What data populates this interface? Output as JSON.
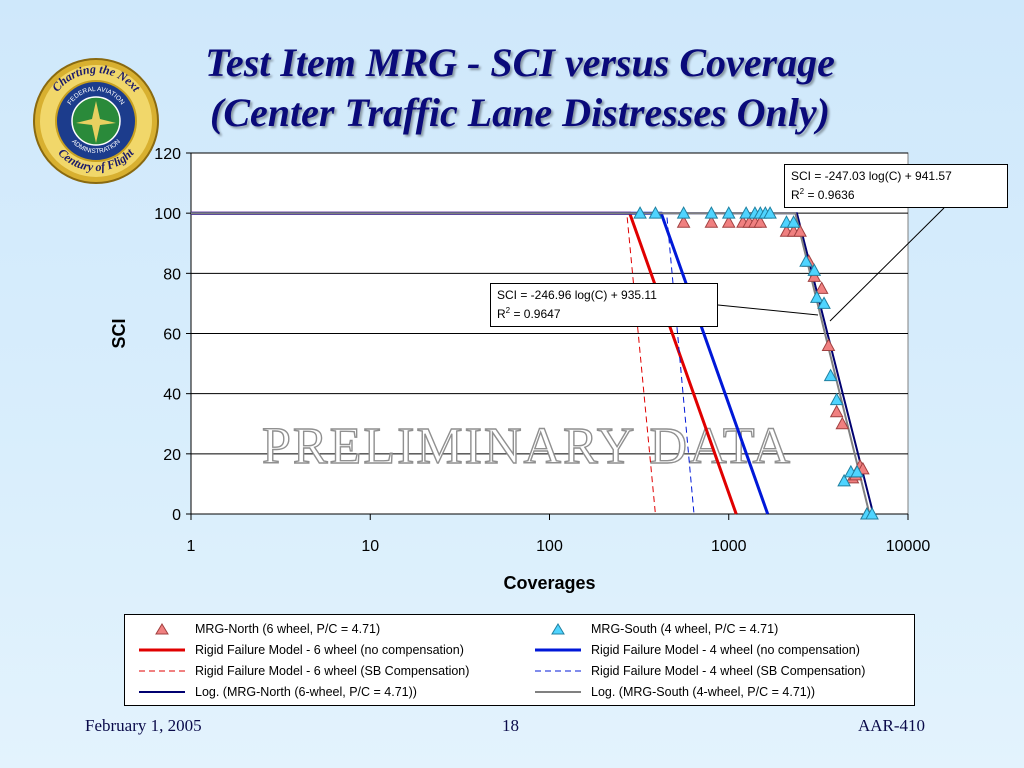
{
  "slide": {
    "title_line1": "Test Item MRG - SCI versus Coverage",
    "title_line2": "(Center Traffic Lane Distresses Only)",
    "footer_left": "February 1, 2005",
    "footer_center": "18",
    "footer_right": "AAR-410",
    "logo_text_top": "Charting the Next",
    "logo_text_bottom": "Century of Flight",
    "logo_ring_top": "FEDERAL AVIATION",
    "logo_ring_bottom": "ADMINISTRATION"
  },
  "chart_data": {
    "type": "scatter",
    "xlabel": "Coverages",
    "ylabel": "SCI",
    "xscale": "log",
    "xlim": [
      1,
      10000
    ],
    "ylim": [
      0,
      120
    ],
    "xticks": [
      "1",
      "10",
      "100",
      "1000",
      "10000"
    ],
    "yticks": [
      "0",
      "20",
      "40",
      "60",
      "80",
      "100",
      "120"
    ],
    "grid": "horizontal",
    "watermark": "PRELIMINARY DATA",
    "annotations": [
      {
        "equation": "SCI = -247.03 log(C) + 941.57",
        "r2_label": "R",
        "r2_value": " = 0.9636"
      },
      {
        "equation": "SCI = -246.96 log(C) + 935.11",
        "r2_label": "R",
        "r2_value": " = 0.9647"
      }
    ],
    "series": [
      {
        "name": "MRG-North  (6 wheel, P/C = 4.71)",
        "kind": "marker",
        "marker": "triangle",
        "color": "#f08080",
        "points": [
          [
            560,
            97
          ],
          [
            800,
            97
          ],
          [
            1000,
            97
          ],
          [
            1200,
            97
          ],
          [
            1300,
            97
          ],
          [
            1400,
            97
          ],
          [
            1500,
            97
          ],
          [
            2100,
            94
          ],
          [
            2300,
            94
          ],
          [
            2500,
            94
          ],
          [
            2800,
            84
          ],
          [
            3000,
            79
          ],
          [
            3300,
            75
          ],
          [
            3600,
            56
          ],
          [
            4000,
            34
          ],
          [
            4300,
            30
          ],
          [
            4900,
            12
          ],
          [
            5100,
            13
          ],
          [
            5400,
            16
          ],
          [
            5600,
            15
          ],
          [
            5900,
            0
          ]
        ]
      },
      {
        "name": "MRG-South (4 wheel, P/C = 4.71)",
        "kind": "marker",
        "marker": "triangle",
        "color": "#4fd4ff",
        "points": [
          [
            320,
            100
          ],
          [
            390,
            100
          ],
          [
            560,
            100
          ],
          [
            800,
            100
          ],
          [
            1000,
            100
          ],
          [
            1250,
            100
          ],
          [
            1400,
            100
          ],
          [
            1500,
            100
          ],
          [
            1600,
            100
          ],
          [
            1700,
            100
          ],
          [
            2100,
            97
          ],
          [
            2300,
            97
          ],
          [
            2700,
            84
          ],
          [
            3000,
            81
          ],
          [
            3100,
            72
          ],
          [
            3400,
            70
          ],
          [
            3700,
            46
          ],
          [
            4000,
            38
          ],
          [
            4400,
            11
          ],
          [
            4800,
            14
          ],
          [
            5200,
            14
          ],
          [
            5900,
            0
          ],
          [
            6300,
            0
          ]
        ]
      },
      {
        "name": "Rigid Failure Model - 6 wheel (no compensation)",
        "kind": "line",
        "color": "#e00000",
        "dash": "solid",
        "width": 3,
        "points": [
          [
            1,
            100
          ],
          [
            280,
            100
          ],
          [
            1100,
            0
          ]
        ]
      },
      {
        "name": "Rigid Failure Model - 4 wheel (no compensation)",
        "kind": "line",
        "color": "#0018d8",
        "dash": "solid",
        "width": 3,
        "points": [
          [
            1,
            100
          ],
          [
            420,
            100
          ],
          [
            1650,
            0
          ]
        ]
      },
      {
        "name": "Rigid Failure Model - 6 wheel (SB Compensation)",
        "kind": "line",
        "color": "#e00000",
        "dash": "dashed",
        "width": 1,
        "points": [
          [
            1,
            100
          ],
          [
            270,
            100
          ],
          [
            390,
            0
          ]
        ]
      },
      {
        "name": "Rigid Failure Model - 4 wheel (SB Compensation)",
        "kind": "line",
        "color": "#0018d8",
        "dash": "dashed",
        "width": 1,
        "points": [
          [
            1,
            100
          ],
          [
            450,
            100
          ],
          [
            640,
            0
          ]
        ]
      },
      {
        "name": "Log. (MRG-North (6-wheel, P/C = 4.71))",
        "kind": "line",
        "color": "#000070",
        "dash": "solid",
        "width": 2,
        "points": [
          [
            1,
            100
          ],
          [
            2400,
            100
          ],
          [
            6400,
            0
          ]
        ]
      },
      {
        "name": "Log. (MRG-South (4-wheel, P/C = 4.71))",
        "kind": "line",
        "color": "#808080",
        "dash": "solid",
        "width": 2,
        "points": [
          [
            1,
            100
          ],
          [
            2350,
            100
          ],
          [
            6100,
            0
          ]
        ]
      }
    ]
  }
}
